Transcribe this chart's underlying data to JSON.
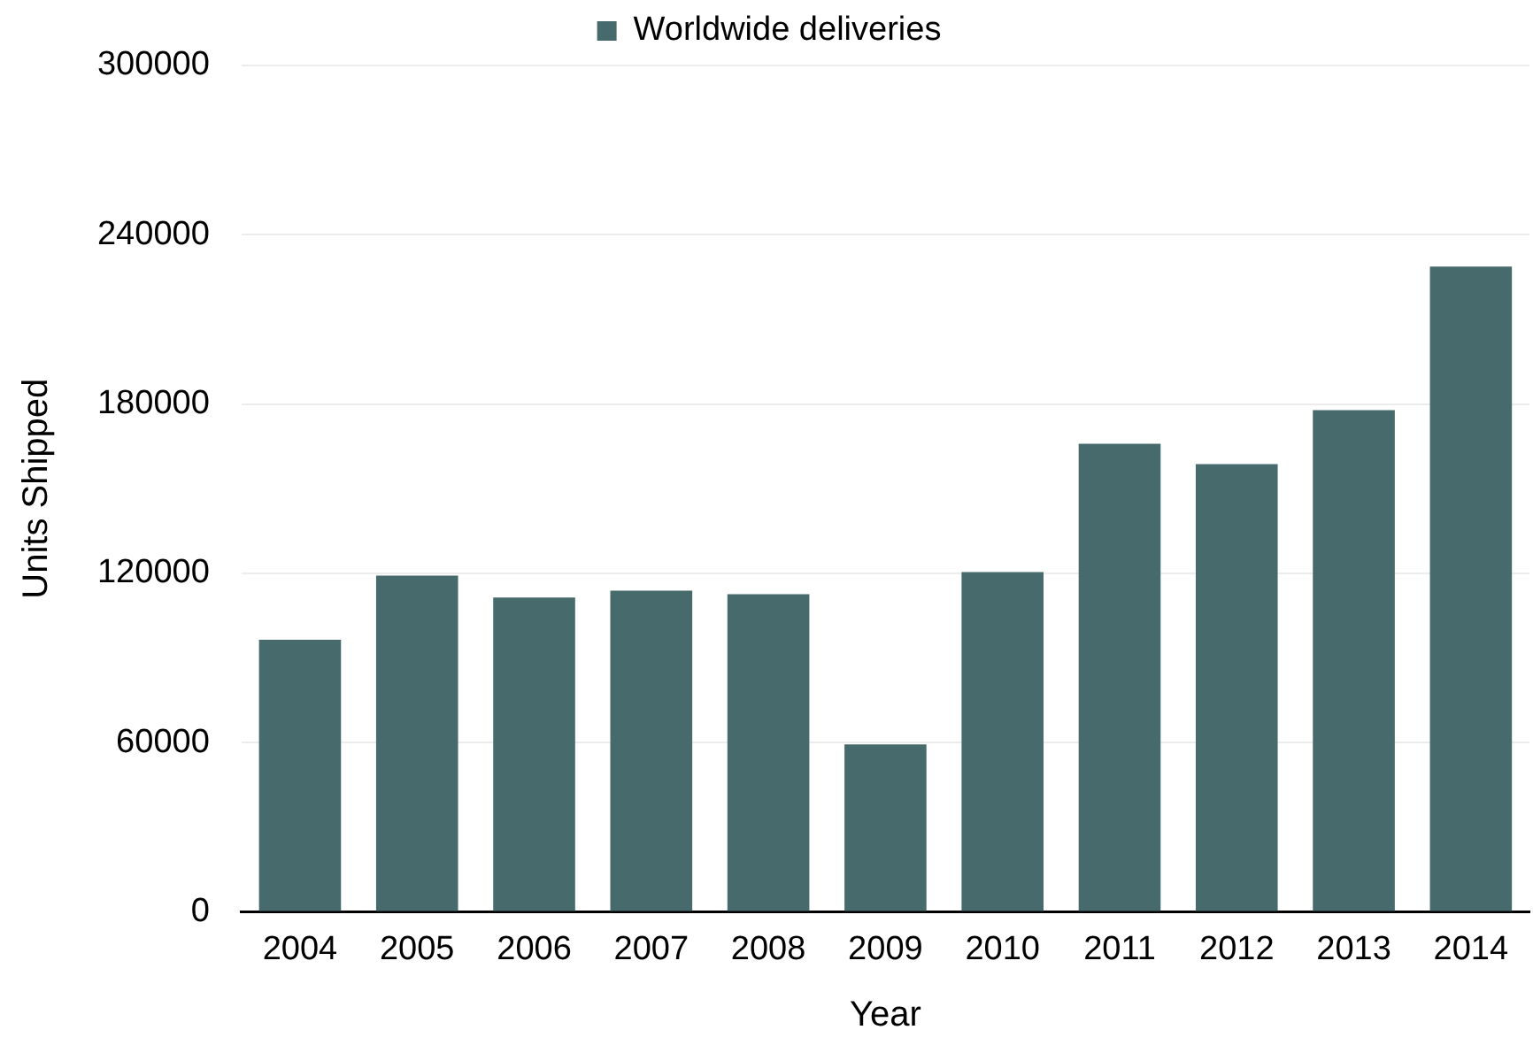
{
  "chart_data": {
    "type": "bar",
    "xlabel": "Year",
    "ylabel": "Units Shipped",
    "categories": [
      "2004",
      "2005",
      "2006",
      "2007",
      "2008",
      "2009",
      "2010",
      "2011",
      "2012",
      "2013",
      "2014"
    ],
    "series": [
      {
        "name": "Worldwide deliveries",
        "color": "#476b6d",
        "values": [
          96400,
          119200,
          111400,
          113800,
          112600,
          59300,
          120400,
          165900,
          158700,
          177800,
          228700
        ]
      }
    ],
    "ylim": [
      0,
      300000
    ],
    "yticks": [
      0,
      60000,
      120000,
      180000,
      240000,
      300000
    ],
    "grid": "y",
    "legend": "top"
  }
}
